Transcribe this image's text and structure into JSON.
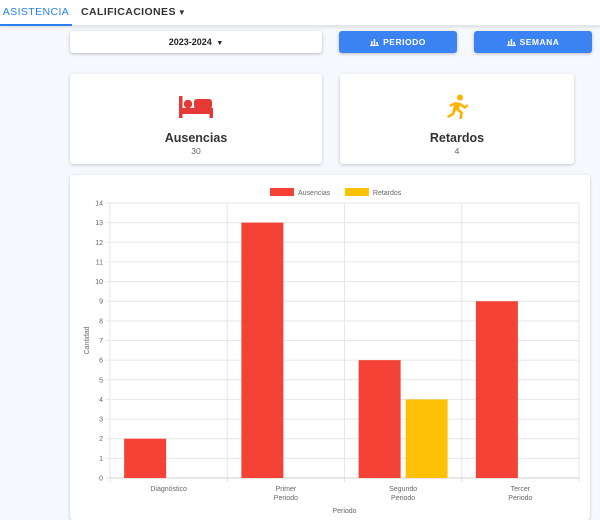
{
  "nav": {
    "tabs": [
      {
        "label": "ASISTENCIA",
        "active": true
      },
      {
        "label": "CALIFICACIONES",
        "active": false
      }
    ]
  },
  "controls": {
    "year": "2023-2024",
    "periodo_label": "PERIODO",
    "semana_label": "SEMANA"
  },
  "cards": {
    "ausencias": {
      "label": "Ausencias",
      "value": "30",
      "icon": "bed-icon",
      "color": "#e53935"
    },
    "retardos": {
      "label": "Retardos",
      "value": "4",
      "icon": "running-icon",
      "color": "#ffb300"
    }
  },
  "chart_data": {
    "type": "bar",
    "categories": [
      [
        "Diagnóstico"
      ],
      [
        "Primer",
        "Periodo"
      ],
      [
        "Segundo",
        "Periodo"
      ],
      [
        "Tercer",
        "Periodo"
      ]
    ],
    "series": [
      {
        "name": "Ausencias",
        "values": [
          2,
          13,
          6,
          9
        ],
        "color": "#f44336"
      },
      {
        "name": "Retardos",
        "values": [
          0,
          0,
          4,
          0
        ],
        "color": "#ffc107"
      }
    ],
    "xlabel": "Periodo",
    "ylabel": "Cantidad",
    "ylim": [
      0,
      14
    ],
    "yticks": [
      0,
      1,
      2,
      3,
      4,
      5,
      6,
      7,
      8,
      9,
      10,
      11,
      12,
      13,
      14
    ],
    "legend": "top-center",
    "grid": true
  }
}
